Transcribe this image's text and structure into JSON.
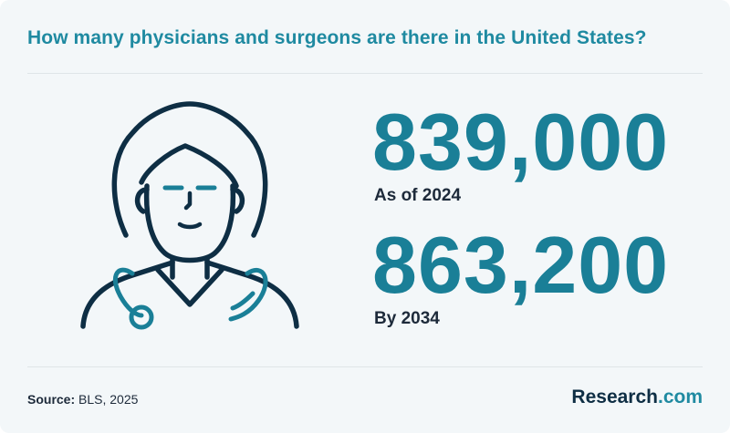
{
  "title": "How many physicians and surgeons are there in the United States?",
  "stats": [
    {
      "value": "839,000",
      "label": "As of 2024"
    },
    {
      "value": "863,200",
      "label": "By 2034"
    }
  ],
  "illustration": {
    "icon": "physician-icon"
  },
  "source": {
    "key": "Source:",
    "text": "BLS, 2025"
  },
  "brand": {
    "name": "Research",
    "tld": ".com"
  },
  "colors": {
    "accent": "#1a7f97",
    "dark": "#0e2e44",
    "background": "#f3f7f9"
  }
}
